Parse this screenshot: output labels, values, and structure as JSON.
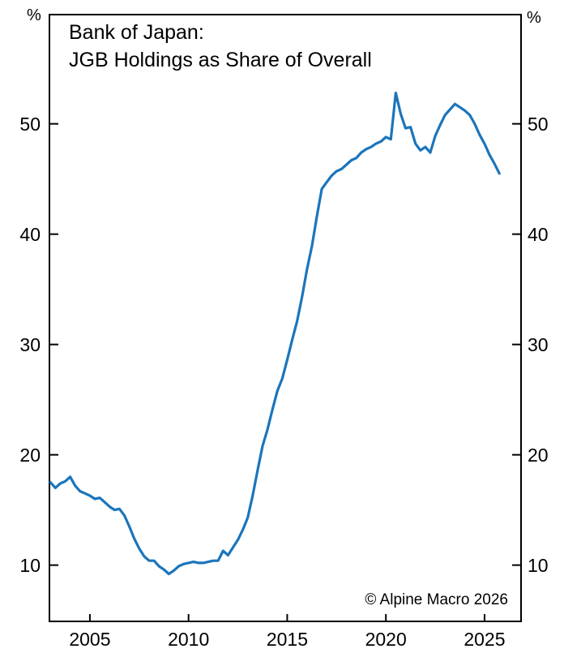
{
  "chart_data": {
    "type": "line",
    "title_lines": [
      "Bank of Japan:",
      "JGB Holdings as Share of Overall"
    ],
    "unit_left": "%",
    "unit_right": "%",
    "attribution": "© Alpine Macro 2026",
    "xlabel": "",
    "ylabel": "%",
    "xlim": [
      2002.95,
      2026.85
    ],
    "ylim": [
      4.9,
      59.9
    ],
    "x_ticks": [
      2005,
      2010,
      2015,
      2020,
      2025
    ],
    "y_ticks": [
      10,
      20,
      30,
      40,
      50
    ],
    "grid": false,
    "legend": "none",
    "line_color": "#1b75bb",
    "frame_color": "#000000",
    "background_color": "#ffffff",
    "x": [
      2003.0,
      2003.25,
      2003.5,
      2003.75,
      2004.0,
      2004.25,
      2004.5,
      2004.75,
      2005.0,
      2005.25,
      2005.5,
      2005.75,
      2006.0,
      2006.25,
      2006.5,
      2006.75,
      2007.0,
      2007.25,
      2007.5,
      2007.75,
      2008.0,
      2008.25,
      2008.5,
      2008.75,
      2009.0,
      2009.25,
      2009.5,
      2009.75,
      2010.0,
      2010.25,
      2010.5,
      2010.75,
      2011.0,
      2011.25,
      2011.5,
      2011.75,
      2012.0,
      2012.25,
      2012.5,
      2012.75,
      2013.0,
      2013.25,
      2013.5,
      2013.75,
      2014.0,
      2014.25,
      2014.5,
      2014.75,
      2015.0,
      2015.25,
      2015.5,
      2015.75,
      2016.0,
      2016.25,
      2016.5,
      2016.75,
      2017.0,
      2017.25,
      2017.5,
      2017.75,
      2018.0,
      2018.25,
      2018.5,
      2018.75,
      2019.0,
      2019.25,
      2019.5,
      2019.75,
      2020.0,
      2020.25,
      2020.5,
      2020.75,
      2021.0,
      2021.25,
      2021.5,
      2021.75,
      2022.0,
      2022.25,
      2022.5,
      2022.75,
      2023.0,
      2023.25,
      2023.5,
      2023.75,
      2024.0,
      2024.25,
      2024.5,
      2024.75,
      2025.0,
      2025.25,
      2025.5,
      2025.75
    ],
    "values": [
      17.5,
      17.0,
      17.4,
      17.6,
      18.0,
      17.2,
      16.7,
      16.5,
      16.3,
      16.0,
      16.1,
      15.7,
      15.3,
      15.0,
      15.1,
      14.5,
      13.5,
      12.4,
      11.5,
      10.8,
      10.4,
      10.4,
      9.9,
      9.6,
      9.2,
      9.5,
      9.9,
      10.1,
      10.2,
      10.3,
      10.2,
      10.2,
      10.3,
      10.4,
      10.4,
      11.3,
      10.9,
      11.6,
      12.3,
      13.2,
      14.3,
      16.3,
      18.6,
      20.8,
      22.3,
      24.1,
      25.8,
      26.9,
      28.6,
      30.4,
      32.1,
      34.3,
      36.8,
      38.9,
      41.6,
      44.1,
      44.7,
      45.3,
      45.7,
      45.9,
      46.3,
      46.7,
      46.9,
      47.4,
      47.7,
      47.9,
      48.2,
      48.4,
      48.8,
      48.6,
      52.8,
      50.9,
      49.6,
      49.7,
      48.2,
      47.6,
      47.9,
      47.4,
      48.9,
      49.9,
      50.8,
      51.3,
      51.8,
      51.5,
      51.2,
      50.8,
      50.0,
      49.0,
      48.2,
      47.2,
      46.4,
      45.5
    ]
  }
}
